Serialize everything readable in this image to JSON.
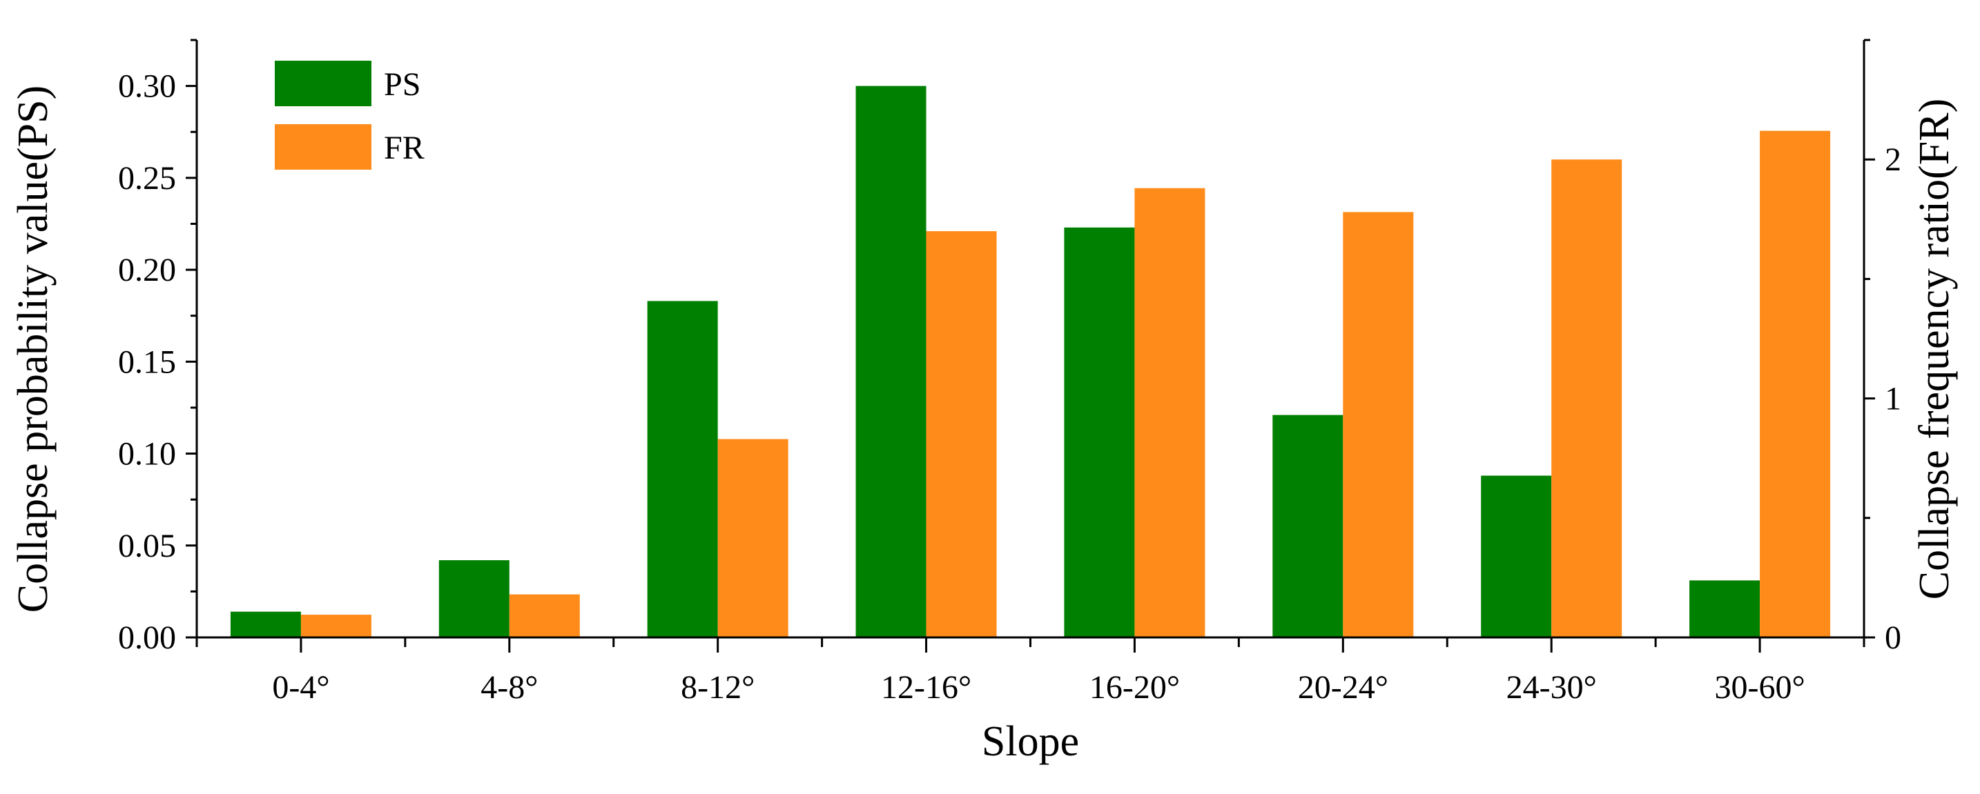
{
  "chart_data": {
    "type": "bar",
    "categories": [
      "0-4°",
      "4-8°",
      "8-12°",
      "12-16°",
      "16-20°",
      "20-24°",
      "24-30°",
      "30-60°"
    ],
    "series": [
      {
        "name": "PS",
        "axis": "left",
        "color": "#008000",
        "values": [
          0.014,
          0.042,
          0.183,
          0.3,
          0.223,
          0.121,
          0.088,
          0.031
        ]
      },
      {
        "name": "FR",
        "axis": "right",
        "color": "#ff8c1a",
        "values": [
          0.095,
          0.18,
          0.83,
          1.7,
          1.88,
          1.78,
          2.0,
          2.12
        ]
      }
    ],
    "xlabel": "Slope",
    "ylabel": "Collapse probability value(PS)",
    "y2label": "Collapse frequency ratio(FR)",
    "ylim": [
      0,
      0.325
    ],
    "y2lim": [
      0,
      2.5
    ],
    "yticks": [
      "0.00",
      "0.05",
      "0.10",
      "0.15",
      "0.20",
      "0.25",
      "0.30"
    ],
    "y2ticks": [
      "0",
      "1",
      "2"
    ],
    "legend_position": "top-left",
    "grid": false
  }
}
